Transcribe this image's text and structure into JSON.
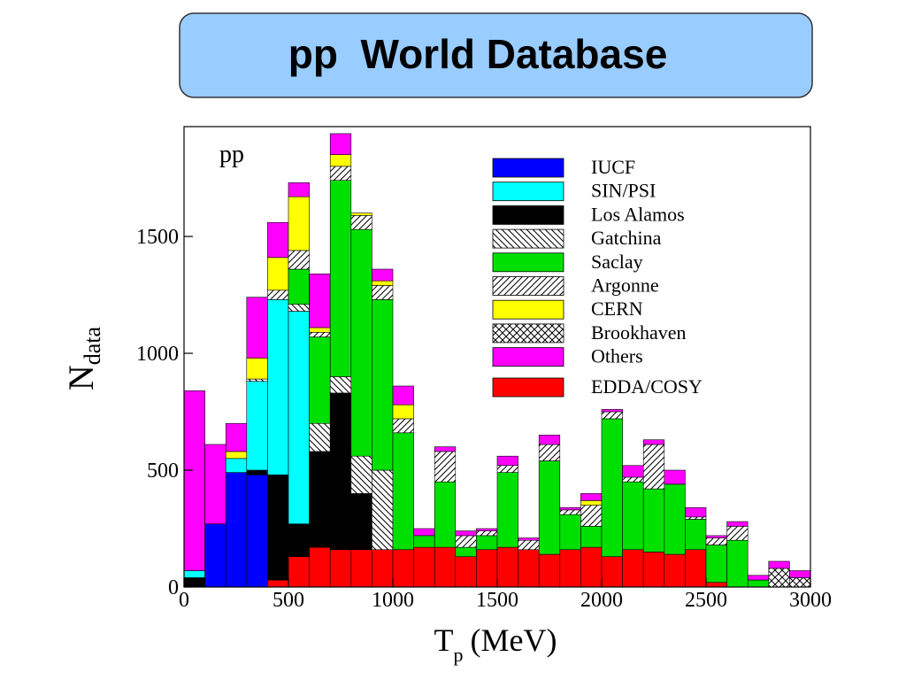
{
  "chart_data": {
    "type": "histogram",
    "title": "pp  World Database",
    "annotation": "pp",
    "xlabel": "T",
    "xlabel_sub": "p",
    "xlabel_unit": "(MeV)",
    "ylabel": "N",
    "ylabel_sub": "data",
    "bins": [
      0,
      100,
      200,
      300,
      400,
      500,
      600,
      700,
      800,
      900,
      1000,
      1100,
      1200,
      1300,
      1400,
      1500,
      1600,
      1700,
      1800,
      1900,
      2000,
      2100,
      2200,
      2300,
      2400,
      2500,
      2600,
      2700,
      2800,
      2900,
      3000
    ],
    "xlim": [
      0,
      3000
    ],
    "xticks": [
      0,
      500,
      1000,
      1500,
      2000,
      2500,
      3000
    ],
    "ylim": [
      0,
      1970
    ],
    "yticks": [
      0,
      500,
      1000,
      1500
    ],
    "stack_order": [
      9,
      0,
      2,
      1,
      3,
      4,
      5,
      6,
      7,
      8
    ],
    "series": [
      {
        "name": "IUCF",
        "color": "#0000ff",
        "values": [
          0,
          270,
          490,
          480,
          0,
          0,
          0,
          0,
          0,
          0,
          0,
          0,
          0,
          0,
          0,
          0,
          0,
          0,
          0,
          0,
          0,
          0,
          0,
          0,
          0,
          0,
          0,
          0,
          0,
          0
        ]
      },
      {
        "name": "SIN/PSI",
        "color": "#00ffff",
        "values": [
          30,
          0,
          60,
          380,
          750,
          910,
          0,
          0,
          0,
          0,
          0,
          0,
          0,
          0,
          0,
          0,
          0,
          0,
          0,
          0,
          0,
          0,
          0,
          0,
          0,
          0,
          0,
          0,
          0,
          0
        ]
      },
      {
        "name": "Los Alamos",
        "color": "#000000",
        "values": [
          40,
          0,
          0,
          20,
          450,
          140,
          410,
          670,
          240,
          0,
          0,
          0,
          0,
          0,
          0,
          0,
          0,
          0,
          0,
          0,
          0,
          0,
          0,
          0,
          0,
          0,
          0,
          0,
          0,
          0
        ]
      },
      {
        "name": "Gatchina",
        "color": "#ffffff",
        "pattern": "back-hatch",
        "values": [
          0,
          0,
          0,
          10,
          0,
          30,
          120,
          70,
          160,
          340,
          0,
          0,
          0,
          0,
          0,
          0,
          0,
          0,
          0,
          0,
          0,
          0,
          0,
          0,
          0,
          0,
          0,
          0,
          0,
          0
        ]
      },
      {
        "name": "Saclay",
        "color": "#00e000",
        "values": [
          0,
          0,
          0,
          0,
          0,
          150,
          370,
          840,
          970,
          730,
          500,
          50,
          280,
          40,
          60,
          320,
          0,
          400,
          150,
          90,
          590,
          290,
          270,
          300,
          130,
          160,
          200,
          30,
          0,
          0
        ]
      },
      {
        "name": "Argonne",
        "color": "#ffffff",
        "pattern": "hatch",
        "values": [
          0,
          0,
          0,
          0,
          40,
          80,
          20,
          60,
          60,
          60,
          60,
          0,
          130,
          50,
          20,
          30,
          40,
          70,
          20,
          90,
          30,
          20,
          190,
          0,
          10,
          30,
          60,
          0,
          0,
          0
        ]
      },
      {
        "name": "CERN",
        "color": "#ffff00",
        "values": [
          0,
          0,
          30,
          90,
          140,
          230,
          20,
          50,
          10,
          20,
          60,
          0,
          0,
          0,
          0,
          0,
          0,
          0,
          0,
          20,
          0,
          0,
          0,
          0,
          0,
          0,
          0,
          0,
          0,
          0
        ]
      },
      {
        "name": "Brookhaven",
        "color": "#ffffff",
        "pattern": "cross-hatch",
        "values": [
          0,
          0,
          0,
          0,
          0,
          0,
          0,
          0,
          0,
          0,
          0,
          0,
          0,
          0,
          0,
          0,
          0,
          0,
          0,
          0,
          0,
          0,
          0,
          0,
          0,
          0,
          0,
          0,
          80,
          40
        ]
      },
      {
        "name": "Others",
        "color": "#ff00ff",
        "values": [
          770,
          340,
          120,
          260,
          150,
          60,
          230,
          90,
          0,
          50,
          80,
          30,
          20,
          20,
          10,
          40,
          10,
          40,
          10,
          30,
          10,
          50,
          20,
          60,
          40,
          10,
          20,
          20,
          30,
          30
        ]
      },
      {
        "name": "EDDA/COSY",
        "color": "#ff0000",
        "values": [
          0,
          0,
          0,
          0,
          30,
          130,
          170,
          160,
          160,
          160,
          160,
          170,
          170,
          130,
          160,
          170,
          160,
          140,
          160,
          170,
          130,
          160,
          150,
          140,
          160,
          20,
          0,
          0,
          0,
          0
        ]
      }
    ]
  }
}
